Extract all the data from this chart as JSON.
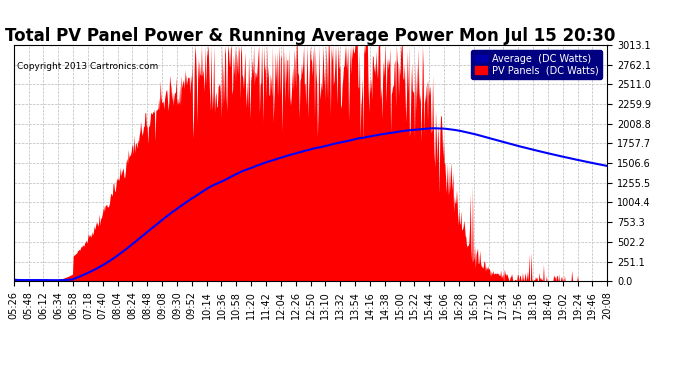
{
  "title": "Total PV Panel Power & Running Average Power Mon Jul 15 20:30",
  "copyright": "Copyright 2013 Cartronics.com",
  "legend_avg": "Average  (DC Watts)",
  "legend_pv": "PV Panels  (DC Watts)",
  "ymin": 0.0,
  "ymax": 3013.1,
  "yticks": [
    0.0,
    251.1,
    502.2,
    753.3,
    1004.4,
    1255.5,
    1506.6,
    1757.7,
    2008.8,
    2259.9,
    2511.0,
    2762.1,
    3013.1
  ],
  "xtick_labels": [
    "05:26",
    "05:48",
    "06:12",
    "06:34",
    "06:58",
    "07:18",
    "07:40",
    "08:04",
    "08:24",
    "08:48",
    "09:08",
    "09:30",
    "09:52",
    "10:14",
    "10:36",
    "10:58",
    "11:20",
    "11:42",
    "12:04",
    "12:26",
    "12:50",
    "13:10",
    "13:32",
    "13:54",
    "14:16",
    "14:38",
    "15:00",
    "15:22",
    "15:44",
    "16:06",
    "16:28",
    "16:50",
    "17:12",
    "17:34",
    "17:56",
    "18:18",
    "18:40",
    "19:02",
    "19:24",
    "19:46",
    "20:08"
  ],
  "pv_color": "#FF0000",
  "avg_color": "#0000FF",
  "bg_color": "#FFFFFF",
  "plot_bg_color": "#FFFFFF",
  "grid_color": "#BBBBBB",
  "title_fontsize": 12,
  "tick_fontsize": 7,
  "n_points": 820
}
